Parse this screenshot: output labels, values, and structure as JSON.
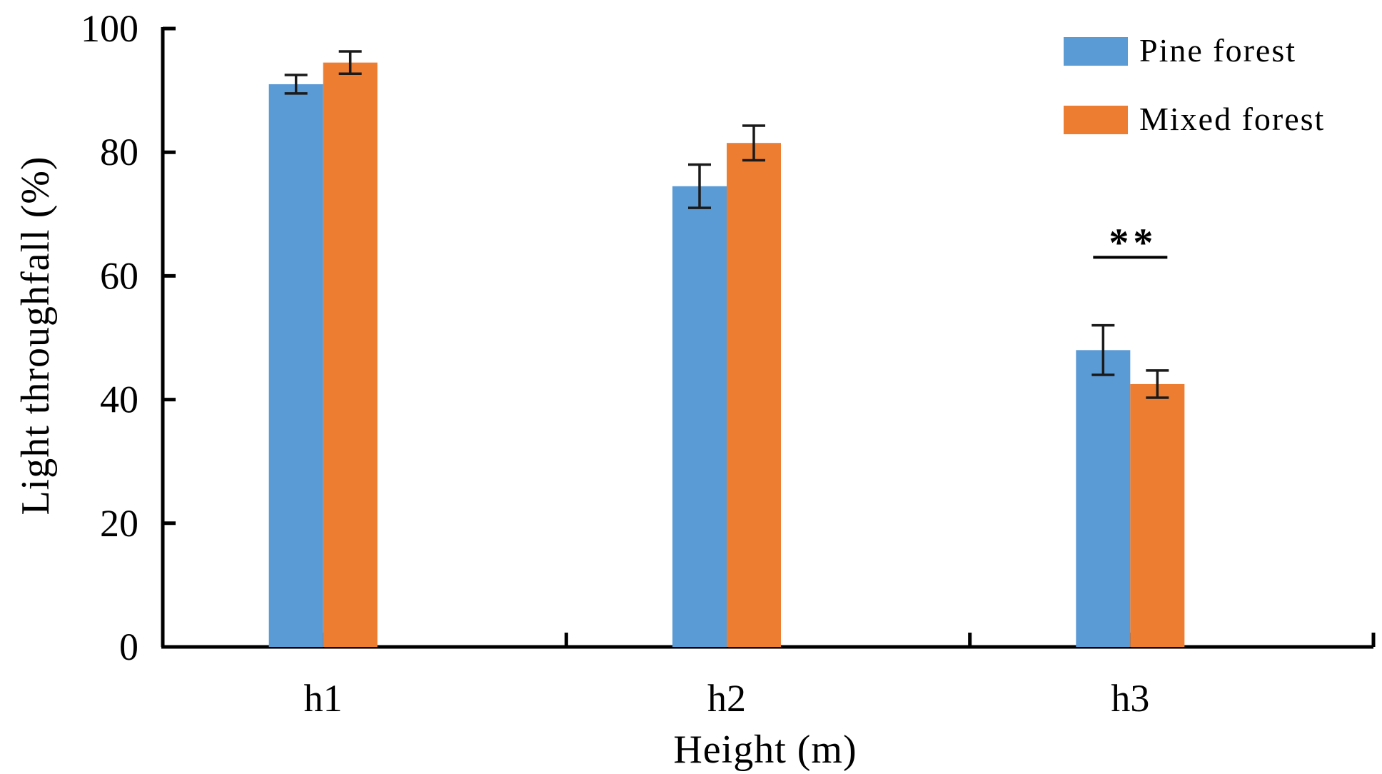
{
  "chart_data": {
    "type": "bar",
    "title": "",
    "xlabel": "Height (m)",
    "ylabel": "Light throughfall (%)",
    "categories": [
      "h1",
      "h2",
      "h3"
    ],
    "ylim": [
      0,
      100
    ],
    "yticks": [
      0,
      20,
      40,
      60,
      80,
      100
    ],
    "series": [
      {
        "name": "Pine forest",
        "color": "#5b9bd5",
        "values": [
          91,
          74.5,
          48
        ],
        "errors": [
          1.5,
          3.5,
          4
        ]
      },
      {
        "name": "Mixed forest",
        "color": "#ed7d31",
        "values": [
          94.5,
          81.5,
          42.5
        ],
        "errors": [
          1.8,
          2.8,
          2.2
        ]
      }
    ],
    "annotations": [
      {
        "category": "h3",
        "text": "**",
        "y": 63
      }
    ],
    "legend_position": "top-right",
    "grid": false
  }
}
